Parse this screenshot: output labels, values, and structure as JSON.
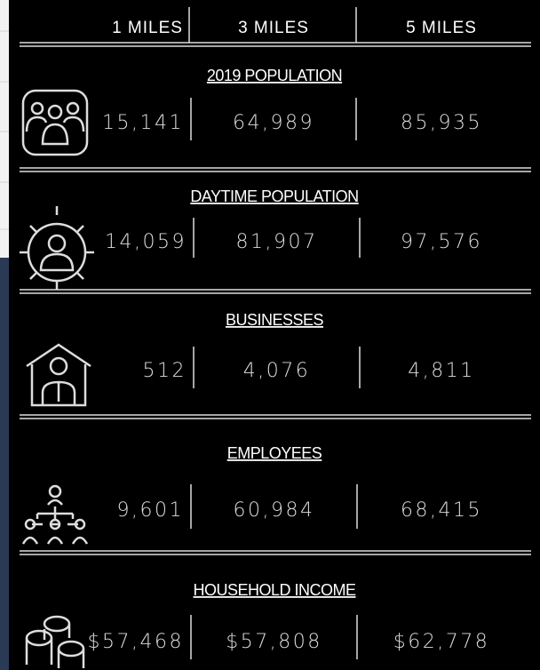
{
  "header": {
    "columns": [
      "1 MILES",
      "3 MILES",
      "5 MILES"
    ]
  },
  "sections": [
    {
      "title": "2019 POPULATION",
      "values": [
        "15,141",
        "64,989",
        "85,935"
      ]
    },
    {
      "title": "DAYTIME POPULATION",
      "values": [
        "14,059",
        "81,907",
        "97,576"
      ]
    },
    {
      "title": "BUSINESSES",
      "values": [
        "512",
        "4,076",
        "4,811"
      ]
    },
    {
      "title": "EMPLOYEES",
      "values": [
        "9,601",
        "60,984",
        "68,415"
      ]
    },
    {
      "title": "HOUSEHOLD INCOME",
      "values": [
        "$57,468",
        "$57,808",
        "$62,778"
      ]
    }
  ]
}
